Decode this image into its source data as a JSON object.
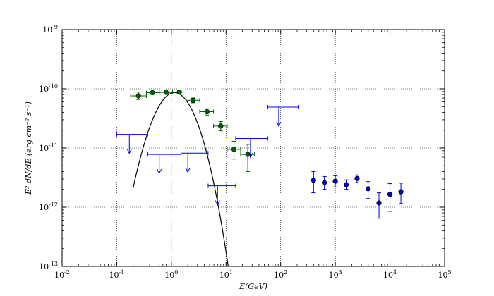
{
  "chart_data": {
    "type": "scatter",
    "xscale": "log",
    "yscale": "log",
    "xlim": [
      0.01,
      100000
    ],
    "ylim": [
      1e-13,
      1e-09
    ],
    "grid": true,
    "xlabel": "E(GeV)",
    "ylabel": "E² dN/dE (erg cm⁻² s⁻¹)",
    "x_ticks": [
      {
        "base": "10",
        "exp": "-2"
      },
      {
        "base": "10",
        "exp": "-1"
      },
      {
        "base": "10",
        "exp": "0"
      },
      {
        "base": "10",
        "exp": "1"
      },
      {
        "base": "10",
        "exp": "2"
      },
      {
        "base": "10",
        "exp": "3"
      },
      {
        "base": "10",
        "exp": "4"
      },
      {
        "base": "10",
        "exp": "5"
      }
    ],
    "y_ticks": [
      {
        "base": "10",
        "exp": "-13"
      },
      {
        "base": "10",
        "exp": "-12"
      },
      {
        "base": "10",
        "exp": "-11"
      },
      {
        "base": "10",
        "exp": "-10"
      },
      {
        "base": "10",
        "exp": "-9"
      }
    ],
    "series": [
      {
        "kind": "points",
        "color": "#006400",
        "points": [
          {
            "x": 0.25,
            "y": 7.6e-11,
            "xlo": 0.18,
            "xhi": 0.35,
            "ylo": 6.6e-11,
            "yhi": 8.8e-11
          },
          {
            "x": 0.45,
            "y": 8.6e-11,
            "xlo": 0.35,
            "xhi": 0.6,
            "ylo": 8.1e-11,
            "yhi": 9.1e-11
          },
          {
            "x": 0.8,
            "y": 8.7e-11,
            "xlo": 0.6,
            "xhi": 1.05,
            "ylo": 8.3e-11,
            "yhi": 9.1e-11
          },
          {
            "x": 1.4,
            "y": 8.8e-11,
            "xlo": 1.05,
            "xhi": 1.85,
            "ylo": 8.3e-11,
            "yhi": 9.3e-11
          },
          {
            "x": 2.5,
            "y": 6.4e-11,
            "xlo": 1.85,
            "xhi": 3.3,
            "ylo": 5.8e-11,
            "yhi": 7e-11
          },
          {
            "x": 4.5,
            "y": 4.1e-11,
            "xlo": 3.3,
            "xhi": 5.9,
            "ylo": 3.6e-11,
            "yhi": 4.6e-11
          },
          {
            "x": 8,
            "y": 2.35e-11,
            "xlo": 5.9,
            "xhi": 10.5,
            "ylo": 1.95e-11,
            "yhi": 2.8e-11
          },
          {
            "x": 14,
            "y": 9.5e-12,
            "xlo": 10.5,
            "xhi": 18.5,
            "ylo": 6.5e-12,
            "yhi": 1.3e-11
          },
          {
            "x": 25,
            "y": 7.8e-12,
            "xlo": 18.5,
            "xhi": 33,
            "ylo": 4e-12,
            "yhi": 1.15e-11
          }
        ]
      },
      {
        "kind": "points",
        "color": "#0000cd",
        "points": [
          {
            "x": 400,
            "y": 2.85e-12,
            "ylo": 1.75e-12,
            "yhi": 4e-12
          },
          {
            "x": 630,
            "y": 2.6e-12,
            "ylo": 2e-12,
            "yhi": 3.3e-12
          },
          {
            "x": 1000,
            "y": 2.75e-12,
            "ylo": 2.2e-12,
            "yhi": 3.4e-12
          },
          {
            "x": 1580,
            "y": 2.4e-12,
            "ylo": 2e-12,
            "yhi": 2.9e-12
          },
          {
            "x": 2500,
            "y": 3.05e-12,
            "ylo": 2.6e-12,
            "yhi": 3.5e-12
          },
          {
            "x": 3980,
            "y": 2.05e-12,
            "ylo": 1.4e-12,
            "yhi": 2.7e-12
          },
          {
            "x": 6300,
            "y": 1.18e-12,
            "ylo": 6.5e-13,
            "yhi": 1.75e-12
          },
          {
            "x": 10000,
            "y": 1.65e-12,
            "ylo": 8.5e-13,
            "yhi": 2.5e-12
          },
          {
            "x": 15850,
            "y": 1.82e-12,
            "ylo": 1.15e-12,
            "yhi": 2.55e-12
          }
        ]
      },
      {
        "kind": "upper_limits",
        "color": "#0000ff",
        "points": [
          {
            "x": 0.17,
            "y": 1.7e-11,
            "xlo": 0.1,
            "xhi": 0.37
          },
          {
            "x": 0.6,
            "y": 7.8e-12,
            "xlo": 0.37,
            "xhi": 1.5
          },
          {
            "x": 2.0,
            "y": 8.2e-12,
            "xlo": 1.5,
            "xhi": 4.7
          },
          {
            "x": 7.0,
            "y": 2.3e-12,
            "xlo": 4.7,
            "xhi": 15
          },
          {
            "x": 28,
            "y": 1.45e-11,
            "xlo": 15,
            "xhi": 58
          },
          {
            "x": 92,
            "y": 4.9e-11,
            "xlo": 58,
            "xhi": 210
          }
        ]
      },
      {
        "kind": "curve",
        "color": "#000000",
        "model": {
          "norm": 8.6e-11,
          "peak": 1.2,
          "width": 0.65,
          "cutoff": 10
        }
      }
    ]
  }
}
